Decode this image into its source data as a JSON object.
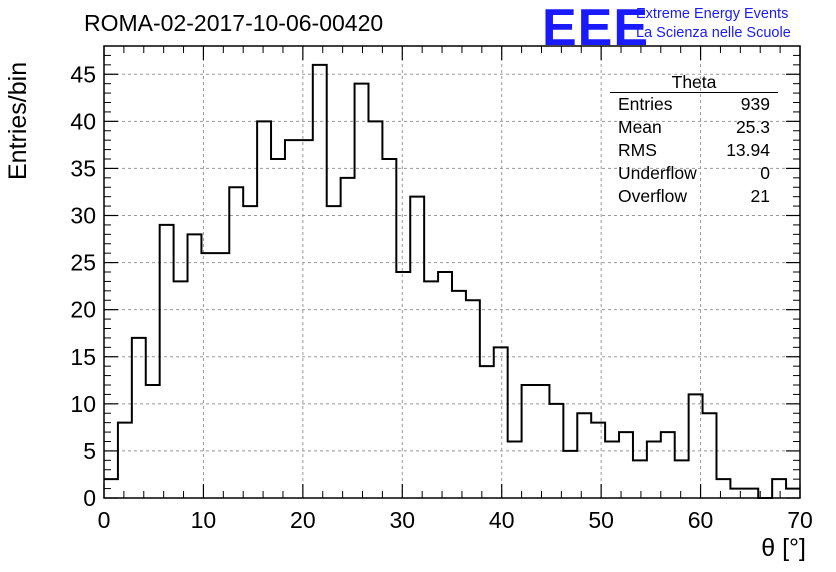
{
  "header": {
    "title": "ROMA-02-2017-10-06-00420",
    "logo": "EEE",
    "logo_line1": "Extreme Energy Events",
    "logo_line2": "La Scienza nelle Scuole"
  },
  "stats": {
    "title": "Theta",
    "rows": [
      {
        "label": "Entries",
        "value": "939"
      },
      {
        "label": "Mean",
        "value": "25.3"
      },
      {
        "label": "RMS",
        "value": "13.94"
      },
      {
        "label": "Underflow",
        "value": "0"
      },
      {
        "label": "Overflow",
        "value": "21"
      }
    ]
  },
  "chart_data": {
    "type": "bar",
    "style": "step-histogram",
    "xlabel": "θ [°]",
    "ylabel": "Entries/bin",
    "xlim": [
      0,
      70
    ],
    "ylim": [
      0,
      48
    ],
    "bin_width": 1.4,
    "bin_edges_start": 0,
    "values": [
      2,
      8,
      17,
      12,
      29,
      23,
      28,
      26,
      26,
      33,
      31,
      40,
      36,
      38,
      38,
      46,
      31,
      34,
      44,
      40,
      36,
      24,
      32,
      23,
      24,
      22,
      21,
      14,
      16,
      6,
      12,
      12,
      10,
      5,
      9,
      8,
      6,
      7,
      4,
      6,
      7,
      4,
      11,
      9,
      2,
      1,
      1,
      0,
      2,
      1
    ],
    "xticks": [
      0,
      10,
      20,
      30,
      40,
      50,
      60,
      70
    ],
    "yticks": [
      0,
      5,
      10,
      15,
      20,
      25,
      30,
      35,
      40,
      45
    ],
    "grid": true,
    "colors": {
      "line": "#000000",
      "grid": "#999999",
      "logo": "#1a1aff"
    }
  }
}
